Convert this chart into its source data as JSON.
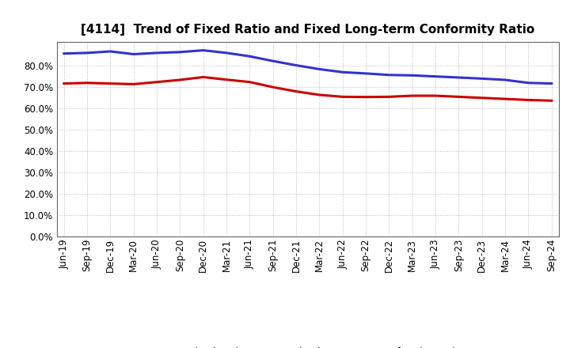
{
  "title": "[4114]  Trend of Fixed Ratio and Fixed Long-term Conformity Ratio",
  "x_labels": [
    "Jun-19",
    "Sep-19",
    "Dec-19",
    "Mar-20",
    "Jun-20",
    "Sep-20",
    "Dec-20",
    "Mar-21",
    "Jun-21",
    "Sep-21",
    "Dec-21",
    "Mar-22",
    "Jun-22",
    "Sep-22",
    "Dec-22",
    "Mar-23",
    "Jun-23",
    "Sep-23",
    "Dec-23",
    "Mar-24",
    "Jun-24",
    "Sep-24"
  ],
  "fixed_ratio": [
    85.5,
    85.8,
    86.5,
    85.2,
    85.8,
    86.2,
    87.0,
    85.8,
    84.2,
    82.0,
    80.0,
    78.2,
    76.8,
    76.2,
    75.5,
    75.3,
    74.8,
    74.3,
    73.8,
    73.2,
    71.8,
    71.5
  ],
  "fixed_lt_ratio": [
    71.5,
    71.8,
    71.5,
    71.2,
    72.2,
    73.2,
    74.5,
    73.3,
    72.2,
    69.8,
    67.8,
    66.2,
    65.3,
    65.2,
    65.3,
    65.8,
    65.8,
    65.3,
    64.8,
    64.3,
    63.8,
    63.5
  ],
  "fixed_ratio_color": "#3333cc",
  "fixed_lt_ratio_color": "#cc0000",
  "yticks": [
    0,
    10,
    20,
    30,
    40,
    50,
    60,
    70,
    80
  ],
  "grid_color": "#999999",
  "background_color": "#ffffff",
  "legend_fixed": "Fixed Ratio",
  "legend_lt": "Fixed Long-term Conformity Ratio",
  "line_width": 2.2,
  "title_fontsize": 11,
  "tick_fontsize": 8.5
}
